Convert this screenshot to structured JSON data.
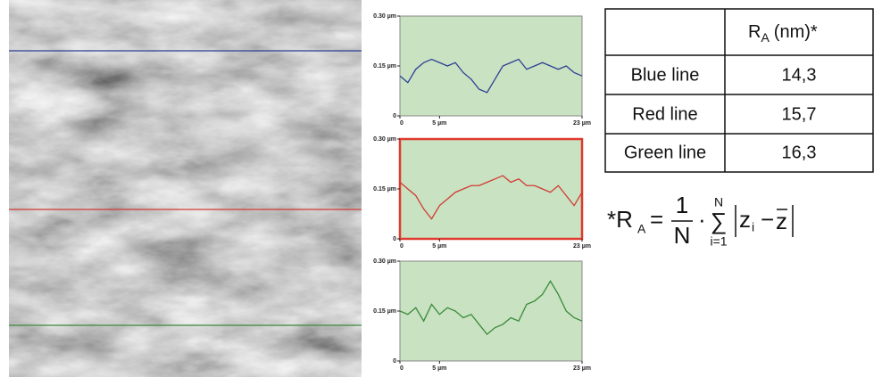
{
  "chart_data": [
    {
      "type": "line",
      "x": [
        0,
        1,
        2,
        3,
        4,
        5,
        6,
        7,
        8,
        9,
        10,
        11,
        12,
        13,
        14,
        15,
        16,
        17,
        18,
        19,
        20,
        21,
        22,
        23
      ],
      "series": [
        {
          "name": "Blue line",
          "color": "#2e3f94",
          "values": [
            0.12,
            0.1,
            0.14,
            0.16,
            0.17,
            0.16,
            0.15,
            0.16,
            0.13,
            0.11,
            0.08,
            0.07,
            0.11,
            0.15,
            0.16,
            0.17,
            0.14,
            0.15,
            0.16,
            0.15,
            0.14,
            0.15,
            0.13,
            0.12
          ]
        }
      ],
      "xlim": [
        0,
        23
      ],
      "xticks": [
        0,
        {
          "value": 5,
          "label": "5 µm"
        },
        {
          "value": 23,
          "label": "23 µm"
        }
      ],
      "ylim": [
        0,
        0.3
      ],
      "yticks": [
        0,
        {
          "value": 0.15,
          "label": "0.15 µm"
        },
        {
          "value": 0.3,
          "label": "0.30 µm"
        }
      ],
      "frame_color": "#888888"
    },
    {
      "type": "line",
      "x": [
        0,
        1,
        2,
        3,
        4,
        5,
        6,
        7,
        8,
        9,
        10,
        11,
        12,
        13,
        14,
        15,
        16,
        17,
        18,
        19,
        20,
        21,
        22,
        23
      ],
      "series": [
        {
          "name": "Red line",
          "color": "#d23a32",
          "values": [
            0.17,
            0.15,
            0.13,
            0.09,
            0.06,
            0.1,
            0.12,
            0.14,
            0.15,
            0.16,
            0.16,
            0.17,
            0.18,
            0.19,
            0.17,
            0.18,
            0.16,
            0.16,
            0.15,
            0.14,
            0.16,
            0.13,
            0.1,
            0.14
          ]
        }
      ],
      "xlim": [
        0,
        23
      ],
      "xticks": [
        0,
        {
          "value": 5,
          "label": "5 µm"
        },
        {
          "value": 23,
          "label": "23 µm"
        }
      ],
      "ylim": [
        0,
        0.3
      ],
      "yticks": [
        0,
        {
          "value": 0.15,
          "label": "0.15 µm"
        },
        {
          "value": 0.3,
          "label": "0.30 µm"
        }
      ],
      "frame_color": "#e03a2e"
    },
    {
      "type": "line",
      "x": [
        0,
        1,
        2,
        3,
        4,
        5,
        6,
        7,
        8,
        9,
        10,
        11,
        12,
        13,
        14,
        15,
        16,
        17,
        18,
        19,
        20,
        21,
        22,
        23
      ],
      "series": [
        {
          "name": "Green line",
          "color": "#3a8a3a",
          "values": [
            0.15,
            0.14,
            0.16,
            0.12,
            0.17,
            0.14,
            0.16,
            0.15,
            0.13,
            0.14,
            0.11,
            0.08,
            0.1,
            0.11,
            0.13,
            0.12,
            0.17,
            0.18,
            0.2,
            0.24,
            0.2,
            0.15,
            0.13,
            0.12
          ]
        }
      ],
      "xlim": [
        0,
        23
      ],
      "xticks": [
        0,
        {
          "value": 5,
          "label": "5 µm"
        },
        {
          "value": 23,
          "label": "23 µm"
        }
      ],
      "ylim": [
        0,
        0.3
      ],
      "yticks": [
        0,
        {
          "value": 0.15,
          "label": "0.15 µm"
        },
        {
          "value": 0.3,
          "label": "0.30 µm"
        }
      ],
      "frame_color": "#888888"
    }
  ],
  "table": {
    "header": {
      "symbol": "R",
      "subscript": "A",
      "unit": "(nm)*"
    },
    "rows": [
      [
        "Blue line",
        "14,3"
      ],
      [
        "Red line",
        "15,7"
      ],
      [
        "Green line",
        "16,3"
      ]
    ]
  },
  "formula": {
    "lhs": "*R",
    "lhs_sub": "A",
    "eq": "=",
    "num": "1",
    "den": "N",
    "dot": "·",
    "sum": "∑",
    "sum_top": "N",
    "sum_bottom": "i=1",
    "z": "z",
    "z_sub": "i",
    "minus": "−",
    "zbar": "z"
  }
}
